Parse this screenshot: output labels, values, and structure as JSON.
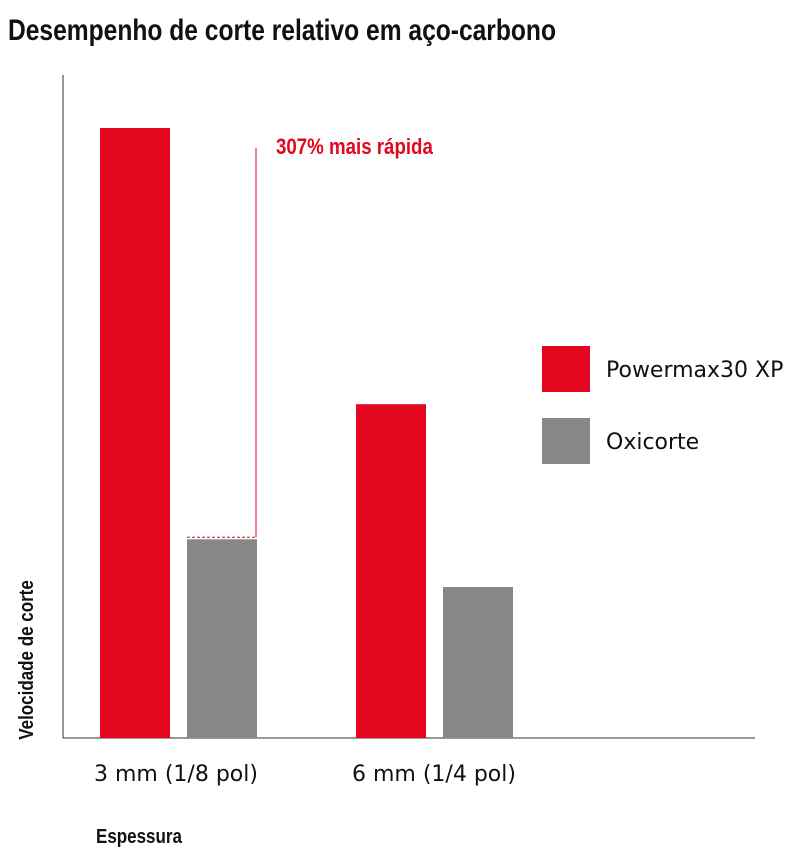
{
  "chart_data": {
    "type": "bar",
    "title": "Desempenho de corte relativo em aço-carbono",
    "xlabel": "Espessura",
    "ylabel": "Velocidade de corte",
    "categories": [
      "3 mm (1/8 pol)",
      "6 mm (1/4 pol)"
    ],
    "series": [
      {
        "name": "Powermax30 XP",
        "values": [
          307,
          168
        ],
        "color": "#e2071f"
      },
      {
        "name": "Oxicorte",
        "values": [
          100,
          76
        ],
        "color": "#878787"
      }
    ],
    "ylim": [
      0,
      330
    ],
    "annotation": {
      "text": "307% mais rápida",
      "color": "#e2071f"
    },
    "legend_position": "right",
    "grid": false
  }
}
